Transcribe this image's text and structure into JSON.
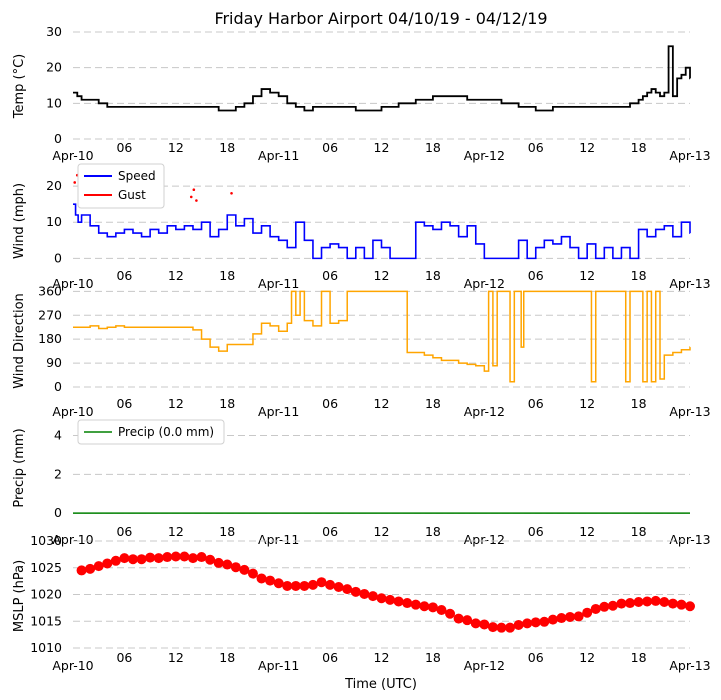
{
  "title": "Friday Harbor Airport 04/10/19 - 04/12/19",
  "x_axis_label": "Time (UTC)",
  "x_tick_labels": [
    "Apr-10",
    "06",
    "12",
    "18",
    "Apr-11",
    "06",
    "12",
    "18",
    "Apr-12",
    "06",
    "12",
    "18",
    "Apr-13"
  ],
  "colors": {
    "temp": "#000000",
    "speed": "#0000ff",
    "gust": "#ff0000",
    "direction": "#ffa500",
    "precip": "#008000",
    "mslp": "#ff0000"
  },
  "chart_data": [
    {
      "type": "line",
      "ylabel": "Temp (°C)",
      "ylim": [
        0,
        30
      ],
      "yticks": [
        0,
        10,
        20,
        30
      ],
      "xlim_hours": [
        0,
        72
      ],
      "series": [
        {
          "name": "Temp",
          "x": [
            0,
            0.5,
            1,
            2,
            3,
            4,
            5,
            6,
            8,
            10,
            12,
            14,
            16,
            17,
            18,
            19,
            20,
            21,
            22,
            23,
            24,
            25,
            26,
            27,
            28,
            30,
            32,
            33,
            34,
            36,
            38,
            40,
            42,
            44,
            46,
            48,
            50,
            52,
            54,
            56,
            58,
            60,
            62,
            64,
            65,
            66,
            66.5,
            67,
            67.5,
            68,
            68.5,
            69,
            69.5,
            70,
            70.5,
            71,
            71.5,
            72
          ],
          "values": [
            13,
            12,
            11,
            11,
            10,
            9,
            9,
            9,
            9,
            9,
            9,
            9,
            9,
            8,
            8,
            9,
            10,
            12,
            14,
            13,
            12,
            10,
            9,
            8,
            9,
            9,
            9,
            8,
            8,
            9,
            10,
            11,
            12,
            12,
            11,
            11,
            10,
            9,
            8,
            9,
            9,
            9,
            9,
            9,
            10,
            11,
            12,
            13,
            14,
            13,
            12,
            13,
            26,
            12,
            17,
            18,
            20,
            17
          ]
        }
      ]
    },
    {
      "type": "line",
      "ylabel": "Wind (mph)",
      "ylim": [
        -1,
        25
      ],
      "yticks": [
        0,
        10,
        20
      ],
      "xlim_hours": [
        0,
        72
      ],
      "legend": [
        "Speed",
        "Gust"
      ],
      "series": [
        {
          "name": "Speed",
          "x": [
            0,
            0.3,
            0.6,
            1,
            2,
            3,
            4,
            5,
            6,
            7,
            8,
            9,
            10,
            11,
            12,
            13,
            14,
            15,
            16,
            17,
            18,
            19,
            20,
            21,
            22,
            23,
            24,
            25,
            26,
            27,
            28,
            29,
            30,
            31,
            32,
            33,
            34,
            35,
            36,
            37,
            38,
            39,
            40,
            41,
            42,
            43,
            44,
            45,
            46,
            47,
            48,
            49,
            50,
            51,
            52,
            53,
            54,
            55,
            56,
            57,
            58,
            59,
            60,
            61,
            62,
            63,
            64,
            65,
            66,
            67,
            68,
            69,
            70,
            71,
            72
          ],
          "values": [
            15,
            12,
            10,
            12,
            9,
            7,
            6,
            7,
            8,
            7,
            6,
            8,
            7,
            9,
            8,
            9,
            8,
            10,
            6,
            8,
            12,
            9,
            11,
            7,
            9,
            6,
            5,
            3,
            10,
            5,
            0,
            3,
            4,
            3,
            0,
            3,
            0,
            5,
            3,
            0,
            0,
            0,
            10,
            9,
            8,
            10,
            9,
            6,
            9,
            4,
            0,
            0,
            0,
            0,
            5,
            0,
            3,
            5,
            4,
            6,
            3,
            0,
            4,
            0,
            3,
            0,
            3,
            0,
            8,
            6,
            8,
            9,
            6,
            10,
            7
          ]
        },
        {
          "name": "Gust",
          "x": [
            0.2,
            0.5,
            13.8,
            14.1,
            14.4,
            18.5
          ],
          "values": [
            21,
            23,
            17,
            19,
            16,
            18
          ]
        }
      ]
    },
    {
      "type": "line",
      "ylabel": "Wind Direction",
      "ylim": [
        -15,
        365
      ],
      "yticks": [
        0,
        90,
        180,
        270,
        360
      ],
      "xlim_hours": [
        0,
        72
      ],
      "series": [
        {
          "name": "Direction",
          "x": [
            0,
            2,
            3,
            4,
            5,
            6,
            8,
            10,
            12,
            14,
            15,
            16,
            17,
            18,
            20,
            21,
            22,
            23,
            24,
            25,
            25.5,
            26,
            26.5,
            27,
            28,
            29,
            30,
            31,
            32,
            33,
            34,
            35,
            36,
            37,
            38,
            39,
            40,
            41,
            42,
            43,
            44,
            45,
            46,
            47,
            48,
            48.5,
            49,
            49.5,
            50,
            51,
            51.5,
            52,
            52.3,
            52.6,
            53,
            54,
            56,
            58,
            60,
            60.5,
            61,
            62,
            63,
            64,
            64.5,
            65,
            66,
            66.5,
            67,
            67.5,
            68,
            68.5,
            69,
            70,
            71,
            72
          ],
          "values": [
            225,
            230,
            220,
            225,
            230,
            225,
            225,
            225,
            225,
            215,
            180,
            150,
            135,
            160,
            160,
            200,
            240,
            230,
            210,
            240,
            360,
            270,
            360,
            250,
            230,
            360,
            240,
            250,
            360,
            360,
            360,
            360,
            360,
            360,
            360,
            130,
            130,
            120,
            110,
            100,
            100,
            90,
            85,
            80,
            60,
            360,
            80,
            360,
            360,
            20,
            360,
            360,
            150,
            360,
            360,
            360,
            360,
            360,
            360,
            20,
            360,
            360,
            360,
            360,
            20,
            360,
            360,
            20,
            360,
            20,
            360,
            30,
            120,
            130,
            140,
            150
          ]
        }
      ]
    },
    {
      "type": "line",
      "ylabel": "Precip (mm)",
      "ylim": [
        -0.2,
        4.8
      ],
      "yticks": [
        0,
        2,
        4
      ],
      "xlim_hours": [
        0,
        72
      ],
      "legend": [
        "Precip (0.0 mm)"
      ],
      "series": [
        {
          "name": "Precip (0.0 mm)",
          "x": [
            0,
            72
          ],
          "values": [
            0,
            0
          ]
        }
      ]
    },
    {
      "type": "scatter",
      "ylabel": "MSLP (hPa)",
      "ylim": [
        1010,
        1030
      ],
      "yticks": [
        1010,
        1015,
        1020,
        1025,
        1030
      ],
      "xlim_hours": [
        0,
        72
      ],
      "series": [
        {
          "name": "MSLP",
          "x": [
            1,
            2,
            3,
            4,
            5,
            6,
            7,
            8,
            9,
            10,
            11,
            12,
            13,
            14,
            15,
            16,
            17,
            18,
            19,
            20,
            21,
            22,
            23,
            24,
            25,
            26,
            27,
            28,
            29,
            30,
            31,
            32,
            33,
            34,
            35,
            36,
            37,
            38,
            39,
            40,
            41,
            42,
            43,
            44,
            45,
            46,
            47,
            48,
            49,
            50,
            51,
            52,
            53,
            54,
            55,
            56,
            57,
            58,
            59,
            60,
            61,
            62,
            63,
            64,
            65,
            66,
            67,
            68,
            69,
            70,
            71,
            72
          ],
          "values": [
            1024.5,
            1024.8,
            1025.3,
            1025.8,
            1026.3,
            1026.8,
            1026.6,
            1026.6,
            1026.9,
            1026.8,
            1027.0,
            1027.1,
            1027.1,
            1026.8,
            1027.0,
            1026.5,
            1025.9,
            1025.6,
            1025.1,
            1024.6,
            1023.9,
            1023.0,
            1022.6,
            1022.1,
            1021.6,
            1021.6,
            1021.6,
            1021.8,
            1022.3,
            1021.8,
            1021.4,
            1021.0,
            1020.5,
            1020.1,
            1019.7,
            1019.3,
            1019.0,
            1018.7,
            1018.4,
            1018.1,
            1017.8,
            1017.6,
            1017.1,
            1016.4,
            1015.5,
            1015.2,
            1014.6,
            1014.4,
            1013.9,
            1013.8,
            1013.8,
            1014.3,
            1014.6,
            1014.8,
            1014.9,
            1015.3,
            1015.6,
            1015.8,
            1015.9,
            1016.6,
            1017.3,
            1017.7,
            1017.9,
            1018.3,
            1018.4,
            1018.6,
            1018.7,
            1018.8,
            1018.6,
            1018.3,
            1018.1,
            1017.8
          ]
        }
      ]
    }
  ]
}
